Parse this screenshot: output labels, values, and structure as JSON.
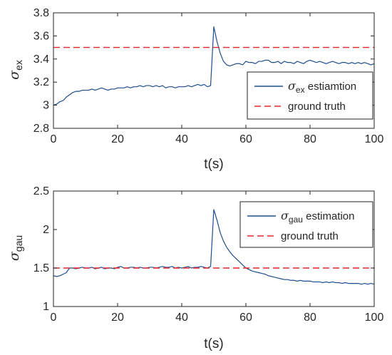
{
  "chart_data": [
    {
      "type": "line",
      "xlabel": "t(s)",
      "ylabel": {
        "symbol": "σ",
        "subscript": "ex"
      },
      "xlim": [
        0,
        100
      ],
      "ylim": [
        2.8,
        3.8
      ],
      "xticks": [
        "0",
        "20",
        "40",
        "60",
        "80",
        "100"
      ],
      "yticks": [
        "2.8",
        "3",
        "3.2",
        "3.4",
        "3.6",
        "3.8"
      ],
      "legend_position": "center-right",
      "series": [
        {
          "name": {
            "symbol": "σ",
            "subscript": "ex",
            "suffix": " estiamtion"
          },
          "color": "#1f4e8c",
          "style": "solid",
          "x": [
            0,
            1,
            2,
            3,
            4,
            5,
            6,
            7,
            8,
            9,
            10,
            11,
            12,
            13,
            14,
            15,
            16,
            17,
            18,
            19,
            20,
            21,
            22,
            23,
            24,
            25,
            26,
            27,
            28,
            29,
            30,
            31,
            32,
            33,
            34,
            35,
            36,
            37,
            38,
            39,
            40,
            41,
            42,
            43,
            44,
            45,
            46,
            47,
            48,
            49,
            50,
            51,
            52,
            53,
            54,
            55,
            56,
            57,
            58,
            59,
            60,
            61,
            62,
            63,
            64,
            65,
            66,
            67,
            68,
            69,
            70,
            71,
            72,
            73,
            74,
            75,
            76,
            77,
            78,
            79,
            80,
            81,
            82,
            83,
            84,
            85,
            86,
            87,
            88,
            89,
            90,
            91,
            92,
            93,
            94,
            95,
            96,
            97,
            98,
            99,
            100
          ],
          "values": [
            3.0,
            3.01,
            3.03,
            3.04,
            3.07,
            3.09,
            3.11,
            3.12,
            3.12,
            3.13,
            3.13,
            3.13,
            3.14,
            3.13,
            3.14,
            3.15,
            3.14,
            3.13,
            3.14,
            3.14,
            3.15,
            3.15,
            3.15,
            3.16,
            3.15,
            3.16,
            3.16,
            3.17,
            3.16,
            3.17,
            3.17,
            3.16,
            3.17,
            3.16,
            3.17,
            3.15,
            3.16,
            3.16,
            3.15,
            3.16,
            3.16,
            3.16,
            3.17,
            3.16,
            3.17,
            3.18,
            3.17,
            3.18,
            3.16,
            3.17,
            3.68,
            3.55,
            3.45,
            3.38,
            3.35,
            3.34,
            3.35,
            3.36,
            3.36,
            3.35,
            3.38,
            3.37,
            3.37,
            3.36,
            3.38,
            3.38,
            3.39,
            3.39,
            3.37,
            3.37,
            3.38,
            3.36,
            3.38,
            3.37,
            3.37,
            3.36,
            3.38,
            3.37,
            3.36,
            3.38,
            3.39,
            3.38,
            3.37,
            3.38,
            3.37,
            3.36,
            3.37,
            3.38,
            3.37,
            3.36,
            3.37,
            3.37,
            3.36,
            3.37,
            3.36,
            3.37,
            3.36,
            3.37,
            3.36,
            3.35,
            3.36
          ]
        },
        {
          "name": {
            "symbol": "",
            "subscript": "",
            "suffix": "ground truth"
          },
          "color": "#e8262a",
          "style": "dashed",
          "x": [
            0,
            100
          ],
          "values": [
            3.5,
            3.5
          ]
        }
      ]
    },
    {
      "type": "line",
      "xlabel": "t(s)",
      "ylabel": {
        "symbol": "σ",
        "subscript": "gau"
      },
      "xlim": [
        0,
        100
      ],
      "ylim": [
        1,
        2.5
      ],
      "xticks": [
        "0",
        "20",
        "40",
        "60",
        "80",
        "100"
      ],
      "yticks": [
        "1",
        "1.5",
        "2",
        "2.5"
      ],
      "legend_position": "top-right",
      "series": [
        {
          "name": {
            "symbol": "σ",
            "subscript": "gau",
            "suffix": " estimation"
          },
          "color": "#1f4e8c",
          "style": "solid",
          "x": [
            0,
            1,
            2,
            3,
            4,
            5,
            6,
            7,
            8,
            9,
            10,
            11,
            12,
            13,
            14,
            15,
            16,
            17,
            18,
            19,
            20,
            21,
            22,
            23,
            24,
            25,
            26,
            27,
            28,
            29,
            30,
            31,
            32,
            33,
            34,
            35,
            36,
            37,
            38,
            39,
            40,
            41,
            42,
            43,
            44,
            45,
            46,
            47,
            48,
            49,
            50,
            51,
            52,
            53,
            54,
            55,
            56,
            57,
            58,
            59,
            60,
            61,
            62,
            63,
            64,
            65,
            66,
            67,
            68,
            69,
            70,
            71,
            72,
            73,
            74,
            75,
            76,
            77,
            78,
            79,
            80,
            81,
            82,
            83,
            84,
            85,
            86,
            87,
            88,
            89,
            90,
            91,
            92,
            93,
            94,
            95,
            96,
            97,
            98,
            99,
            100
          ],
          "values": [
            1.4,
            1.39,
            1.4,
            1.42,
            1.44,
            1.5,
            1.5,
            1.49,
            1.5,
            1.51,
            1.5,
            1.5,
            1.51,
            1.49,
            1.5,
            1.51,
            1.49,
            1.5,
            1.5,
            1.49,
            1.51,
            1.52,
            1.5,
            1.5,
            1.51,
            1.51,
            1.5,
            1.51,
            1.5,
            1.5,
            1.51,
            1.51,
            1.5,
            1.51,
            1.52,
            1.51,
            1.51,
            1.52,
            1.5,
            1.51,
            1.5,
            1.51,
            1.52,
            1.5,
            1.51,
            1.51,
            1.52,
            1.51,
            1.5,
            1.52,
            2.26,
            2.12,
            1.96,
            1.85,
            1.77,
            1.71,
            1.66,
            1.62,
            1.58,
            1.54,
            1.5,
            1.48,
            1.46,
            1.45,
            1.44,
            1.43,
            1.42,
            1.4,
            1.39,
            1.38,
            1.37,
            1.36,
            1.35,
            1.35,
            1.34,
            1.34,
            1.33,
            1.34,
            1.33,
            1.33,
            1.33,
            1.32,
            1.32,
            1.32,
            1.31,
            1.32,
            1.31,
            1.32,
            1.31,
            1.31,
            1.3,
            1.31,
            1.3,
            1.3,
            1.3,
            1.3,
            1.29,
            1.3,
            1.29,
            1.3,
            1.29
          ]
        },
        {
          "name": {
            "symbol": "",
            "subscript": "",
            "suffix": "ground truth"
          },
          "color": "#e8262a",
          "style": "dashed",
          "x": [
            0,
            100
          ],
          "values": [
            1.5,
            1.5
          ]
        }
      ]
    }
  ]
}
